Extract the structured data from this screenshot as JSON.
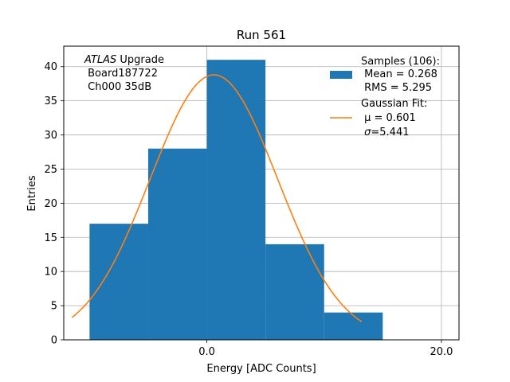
{
  "chart_data": {
    "type": "bar",
    "title": "Run 561",
    "xlabel": "Energy [ADC Counts]",
    "ylabel": "Entries",
    "xlim": [
      -12.2,
      21.5
    ],
    "ylim": [
      0,
      43
    ],
    "grid": true,
    "x_ticks": [
      0.0,
      20.0
    ],
    "x_tick_labels": [
      "0.0",
      "20.0"
    ],
    "y_ticks": [
      0,
      5,
      10,
      15,
      20,
      25,
      30,
      35,
      40
    ],
    "y_tick_labels": [
      "0",
      "5",
      "10",
      "15",
      "20",
      "25",
      "30",
      "35",
      "40"
    ],
    "series": [
      {
        "name": "Samples (106):",
        "kind": "histogram",
        "color": "#1f77b4",
        "bin_edges": [
          -10,
          -5,
          0,
          5,
          10,
          15
        ],
        "values": [
          17,
          28,
          41,
          14,
          4
        ]
      },
      {
        "name": "Gaussian Fit:",
        "kind": "line",
        "color": "#ff7f0e",
        "fit": {
          "amplitude": 38.8,
          "mu": 0.601,
          "sigma": 5.441,
          "x_range": [
            -11.5,
            13.2
          ]
        }
      }
    ],
    "annotation": {
      "italic": "ATLAS",
      "line1_rest": " Upgrade",
      "line2": " Board187722",
      "line3": " Ch000 35dB"
    },
    "legend": {
      "placement": "top-right",
      "samples_title": "Samples (106):",
      "samples_mean": " Mean = 0.268",
      "samples_rms": " RMS = 5.295",
      "fit_title": "Gaussian Fit:",
      "fit_mu": " μ = 0.601",
      "fit_sigma_sym": "σ",
      "fit_sigma_val": "=5.441"
    }
  }
}
